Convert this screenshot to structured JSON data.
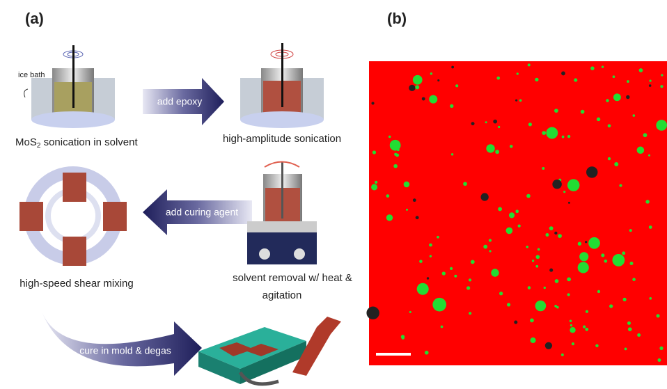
{
  "panel_a": {
    "label": "(a)",
    "ice_bath": "ice bath",
    "steps": [
      {
        "parts": [
          "MoS",
          "2",
          " sonication in solvent"
        ]
      },
      {
        "text": "high-amplitude sonication"
      },
      {
        "text": "high-speed shear mixing"
      },
      {
        "lines": [
          "solvent removal w/ heat &",
          "agitation"
        ]
      }
    ],
    "arrows": [
      "add epoxy",
      "add curing agent",
      "cure in mold & degas"
    ]
  },
  "panel_b": {
    "label": "(b)"
  }
}
